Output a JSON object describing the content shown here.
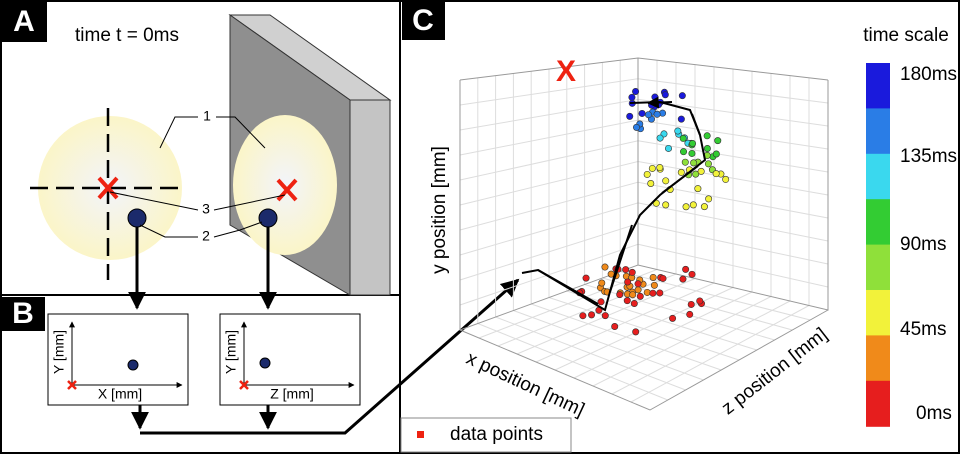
{
  "panels": {
    "a": {
      "label": "A",
      "time": "time t = 0ms",
      "callouts": [
        "1",
        "2",
        "3"
      ]
    },
    "b": {
      "label": "B",
      "plots": [
        {
          "y_axis": "Y [mm]",
          "x_axis": "X [mm]"
        },
        {
          "y_axis": "Y [mm]",
          "x_axis": "Z [mm]"
        }
      ]
    },
    "c": {
      "label": "C",
      "marker": "X",
      "y_axis": "y position [mm]",
      "x_axis": "x position [mm]",
      "z_axis": "z position [mm]",
      "colorbar_title": "time scale",
      "colorbar_labels": [
        "180ms",
        "135ms",
        "90ms",
        "45ms",
        "0ms"
      ],
      "legend": "data points"
    }
  }
}
